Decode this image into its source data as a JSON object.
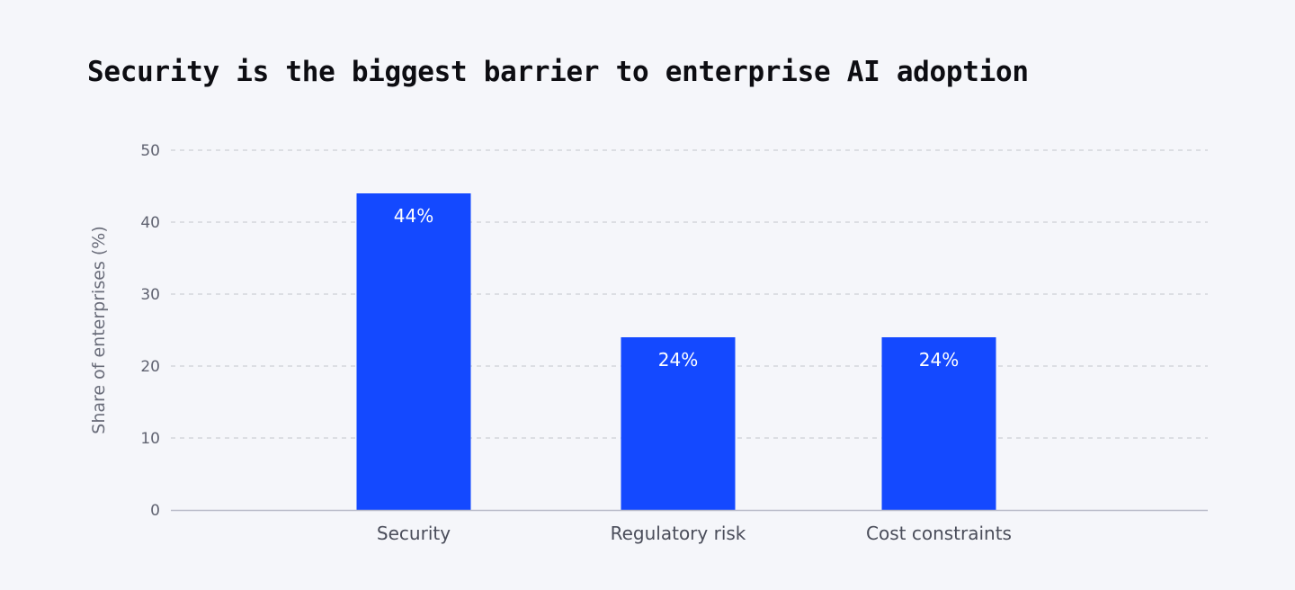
{
  "chart_data": {
    "type": "bar",
    "title": "Security is the biggest barrier to enterprise AI adoption",
    "xlabel": "",
    "ylabel": "Share of enterprises (%)",
    "categories": [
      "Security",
      "Regulatory risk",
      "Cost constraints"
    ],
    "values": [
      44,
      24,
      24
    ],
    "data_labels": [
      "44%",
      "24%",
      "24%"
    ],
    "ylim": [
      0,
      50
    ],
    "yticks": [
      0,
      10,
      20,
      30,
      40,
      50
    ],
    "grid": true,
    "legend": "none",
    "colors": {
      "bar": "#1449ff",
      "background": "#f5f6fa",
      "grid": "#c4c6cc",
      "axis": "#b8bac8"
    }
  }
}
